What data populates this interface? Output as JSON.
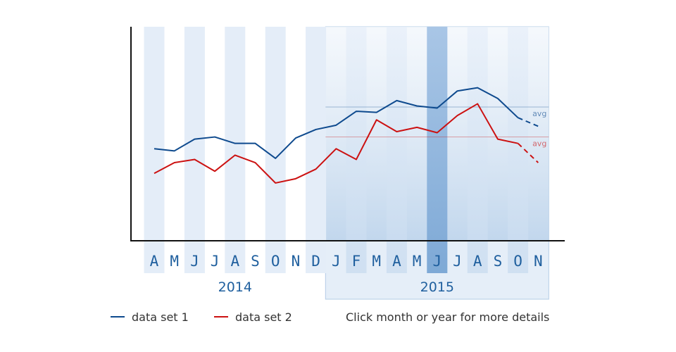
{
  "chart_data": {
    "type": "line",
    "categories": [
      "A",
      "M",
      "J",
      "J",
      "A",
      "S",
      "O",
      "N",
      "D",
      "J",
      "F",
      "M",
      "A",
      "M",
      "J",
      "J",
      "A",
      "S",
      "O",
      "N"
    ],
    "years": [
      {
        "label": "2014",
        "start": 0,
        "end": 8
      },
      {
        "label": "2015",
        "start": 9,
        "end": 19
      }
    ],
    "selected_year": "2015",
    "selected_month_index": 14,
    "series": [
      {
        "name": "data set 1",
        "color": "#0e4a8e",
        "values": [
          43.0,
          42.0,
          47.5,
          48.5,
          45.5,
          45.5,
          38.5,
          48.0,
          52.0,
          54.0,
          60.5,
          60.0,
          65.5,
          63.0,
          62.0,
          70.0,
          71.5,
          66.5,
          57.5,
          53.5
        ],
        "projected_from_index": 18,
        "avg": 62.5,
        "avg_label": "avg"
      },
      {
        "name": "data set 2",
        "color": "#cc1111",
        "values": [
          31.5,
          36.5,
          38.0,
          32.5,
          40.0,
          36.5,
          27.0,
          29.0,
          33.5,
          43.0,
          38.0,
          56.5,
          51.0,
          53.0,
          50.5,
          58.5,
          64.0,
          47.5,
          45.5,
          36.5
        ],
        "projected_from_index": 18,
        "avg": 48.5,
        "avg_label": "avg"
      }
    ],
    "ylim": [
      0,
      100
    ],
    "grid": false,
    "legend_position": "bottom-left"
  },
  "legend": {
    "items": [
      {
        "label": "data set 1",
        "color": "#0e4a8e"
      },
      {
        "label": "data set 2",
        "color": "#cc1111"
      }
    ]
  },
  "hint": "Click month or year for more details",
  "colors": {
    "stripe": "#e4edf8",
    "selected_region": "#cfe0f2",
    "selected_month": "#7ea9d6",
    "axis": "#111111"
  }
}
